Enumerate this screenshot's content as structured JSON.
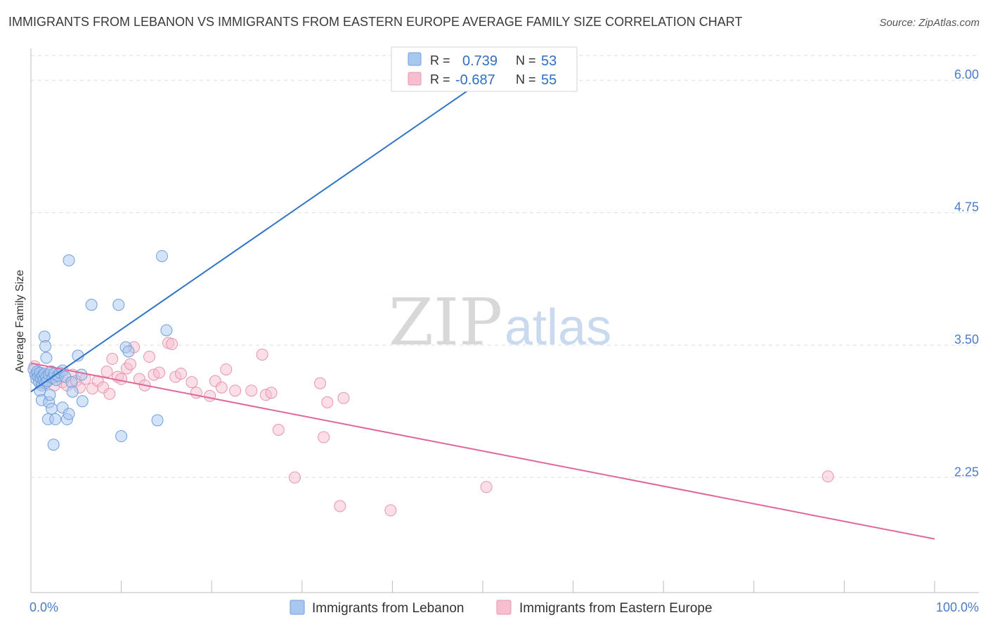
{
  "header": {
    "title": "IMMIGRANTS FROM LEBANON VS IMMIGRANTS FROM EASTERN EUROPE AVERAGE FAMILY SIZE CORRELATION CHART",
    "source": "Source: ZipAtlas.com"
  },
  "watermark": {
    "zip": "ZIP",
    "atlas": "atlas"
  },
  "colors": {
    "blue_fill": "#a9c8f0",
    "blue_stroke": "#6f9fdc",
    "blue_line": "#2f74c8",
    "pink_fill": "#f6bfd0",
    "pink_stroke": "#e895b0",
    "pink_line": "#e0679a",
    "grid": "#dddddd",
    "tick_text": "#4a7cc9"
  },
  "stats": [
    {
      "r_label": "R =",
      "r_value": "0.739",
      "n_label": "N =",
      "n_value": "53"
    },
    {
      "r_label": "R =",
      "r_value": "-0.687",
      "n_label": "N =",
      "n_value": "55"
    }
  ],
  "chart_data": {
    "type": "scatter",
    "title": "IMMIGRANTS FROM LEBANON VS IMMIGRANTS FROM EASTERN EUROPE AVERAGE FAMILY SIZE CORRELATION CHART",
    "xlabel": "",
    "ylabel": "Average Family Size",
    "xlim": [
      0,
      100
    ],
    "ylim": [
      1.25,
      6.3
    ],
    "y_ticks": [
      2.25,
      3.5,
      4.75,
      6.0
    ],
    "y_tick_labels": [
      "2.25",
      "3.50",
      "4.75",
      "6.00"
    ],
    "x_tick_labels": [
      "0.0%",
      "100.0%"
    ],
    "grid": true,
    "legend_position": "bottom",
    "series": [
      {
        "name": "Immigrants from Lebanon",
        "color": "#a9c8f0",
        "r": 0.739,
        "n": 53,
        "trend": {
          "x": [
            0.0,
            50.0
          ],
          "y": [
            3.06,
            6.0
          ]
        },
        "points": [
          [
            0.3,
            3.27
          ],
          [
            0.5,
            3.22
          ],
          [
            0.6,
            3.18
          ],
          [
            0.7,
            3.25
          ],
          [
            0.8,
            3.2
          ],
          [
            0.9,
            3.15
          ],
          [
            1.0,
            3.24
          ],
          [
            1.1,
            3.19
          ],
          [
            1.2,
            3.12
          ],
          [
            1.3,
            3.21
          ],
          [
            1.4,
            3.17
          ],
          [
            1.5,
            3.23
          ],
          [
            1.6,
            3.14
          ],
          [
            1.7,
            3.2
          ],
          [
            1.8,
            3.16
          ],
          [
            2.0,
            3.22
          ],
          [
            2.2,
            3.25
          ],
          [
            2.4,
            3.19
          ],
          [
            2.6,
            3.23
          ],
          [
            2.8,
            3.17
          ],
          [
            3.0,
            3.21
          ],
          [
            3.2,
            3.24
          ],
          [
            3.5,
            3.26
          ],
          [
            3.8,
            3.2
          ],
          [
            1.0,
            3.07
          ],
          [
            1.2,
            2.98
          ],
          [
            1.5,
            3.58
          ],
          [
            1.6,
            3.49
          ],
          [
            1.7,
            3.38
          ],
          [
            1.9,
            2.8
          ],
          [
            2.0,
            2.96
          ],
          [
            2.1,
            3.03
          ],
          [
            2.3,
            2.9
          ],
          [
            2.5,
            2.56
          ],
          [
            2.7,
            2.8
          ],
          [
            3.5,
            2.91
          ],
          [
            4.0,
            2.8
          ],
          [
            4.2,
            2.85
          ],
          [
            4.5,
            3.15
          ],
          [
            4.6,
            3.06
          ],
          [
            5.2,
            3.4
          ],
          [
            5.6,
            3.22
          ],
          [
            5.7,
            2.97
          ],
          [
            4.2,
            4.3
          ],
          [
            6.7,
            3.88
          ],
          [
            9.7,
            3.88
          ],
          [
            10.0,
            2.64
          ],
          [
            10.5,
            3.48
          ],
          [
            10.8,
            3.44
          ],
          [
            14.0,
            2.79
          ],
          [
            14.5,
            4.34
          ],
          [
            15.0,
            3.64
          ],
          [
            42.5,
            6.1
          ]
        ]
      },
      {
        "name": "Immigrants from Eastern Europe",
        "color": "#f6bfd0",
        "r": -0.687,
        "n": 55,
        "trend": {
          "x": [
            0.0,
            100.0
          ],
          "y": [
            3.33,
            1.67
          ]
        },
        "points": [
          [
            0.4,
            3.3
          ],
          [
            0.8,
            3.23
          ],
          [
            1.2,
            3.14
          ],
          [
            1.6,
            3.2
          ],
          [
            2.0,
            3.17
          ],
          [
            2.3,
            3.25
          ],
          [
            2.6,
            3.12
          ],
          [
            3.0,
            3.2
          ],
          [
            3.5,
            3.15
          ],
          [
            4.0,
            3.12
          ],
          [
            4.6,
            3.22
          ],
          [
            5.0,
            3.16
          ],
          [
            5.4,
            3.1
          ],
          [
            6.0,
            3.18
          ],
          [
            6.8,
            3.09
          ],
          [
            7.4,
            3.16
          ],
          [
            8.0,
            3.1
          ],
          [
            8.4,
            3.25
          ],
          [
            8.7,
            3.04
          ],
          [
            9.0,
            3.37
          ],
          [
            9.6,
            3.2
          ],
          [
            10.0,
            3.18
          ],
          [
            10.6,
            3.28
          ],
          [
            11.0,
            3.32
          ],
          [
            11.4,
            3.48
          ],
          [
            12.0,
            3.18
          ],
          [
            12.6,
            3.12
          ],
          [
            13.1,
            3.39
          ],
          [
            13.6,
            3.22
          ],
          [
            14.2,
            3.24
          ],
          [
            15.2,
            3.52
          ],
          [
            15.6,
            3.51
          ],
          [
            16.0,
            3.2
          ],
          [
            16.6,
            3.23
          ],
          [
            17.8,
            3.15
          ],
          [
            18.3,
            3.05
          ],
          [
            19.8,
            3.02
          ],
          [
            20.4,
            3.16
          ],
          [
            21.1,
            3.1
          ],
          [
            21.6,
            3.27
          ],
          [
            22.6,
            3.07
          ],
          [
            24.4,
            3.07
          ],
          [
            25.6,
            3.41
          ],
          [
            26.0,
            3.03
          ],
          [
            26.6,
            3.05
          ],
          [
            27.4,
            2.7
          ],
          [
            29.2,
            2.25
          ],
          [
            32.0,
            3.14
          ],
          [
            32.4,
            2.63
          ],
          [
            32.8,
            2.96
          ],
          [
            34.2,
            1.98
          ],
          [
            34.6,
            3.0
          ],
          [
            39.8,
            1.94
          ],
          [
            50.4,
            2.16
          ],
          [
            88.2,
            2.26
          ]
        ]
      }
    ]
  },
  "legend": [
    {
      "label": "Immigrants from Lebanon"
    },
    {
      "label": "Immigrants from Eastern Europe"
    }
  ]
}
